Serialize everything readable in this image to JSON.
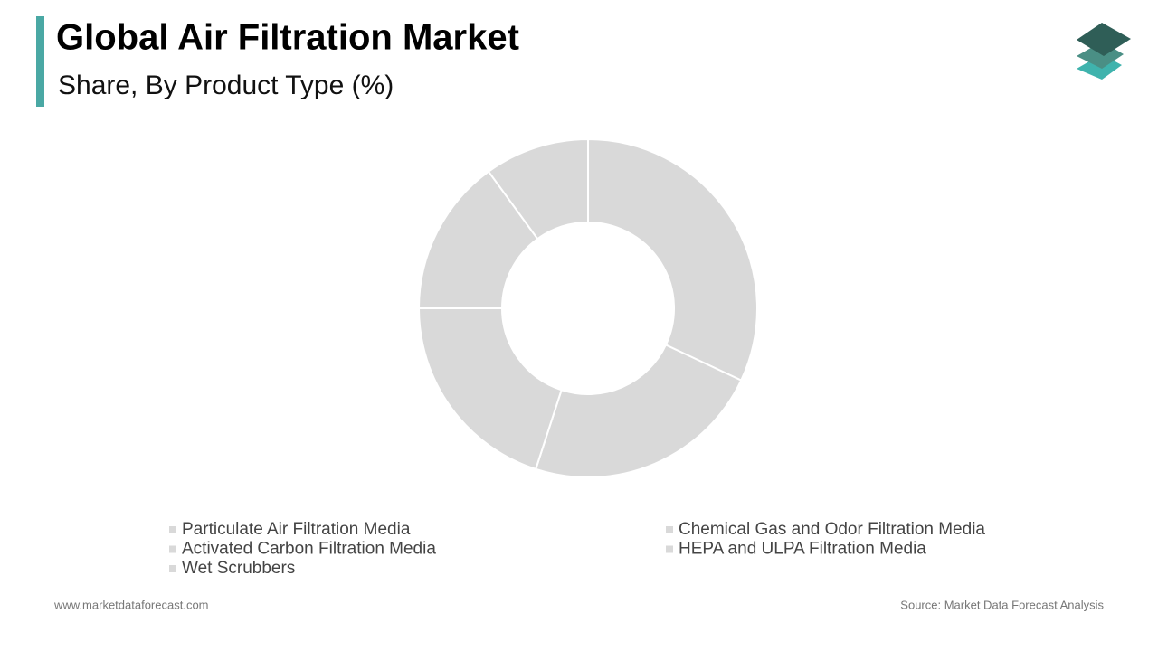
{
  "chart_data": {
    "type": "donut",
    "title": "Global Air Filtration Market",
    "subtitle": "Share, By Product Type (%)",
    "categories": [
      "Particulate Air Filtration Media",
      "Chemical Gas and Odor Filtration Media",
      "Activated Carbon Filtration Media",
      "HEPA and ULPA Filtration Media",
      "Wet Scrubbers"
    ],
    "values": [
      32,
      23,
      20,
      15,
      10
    ],
    "color": "#d9d9d9"
  },
  "footer": {
    "website": "www.marketdataforecast.com",
    "source": "Source: Market Data Forecast Analysis"
  }
}
